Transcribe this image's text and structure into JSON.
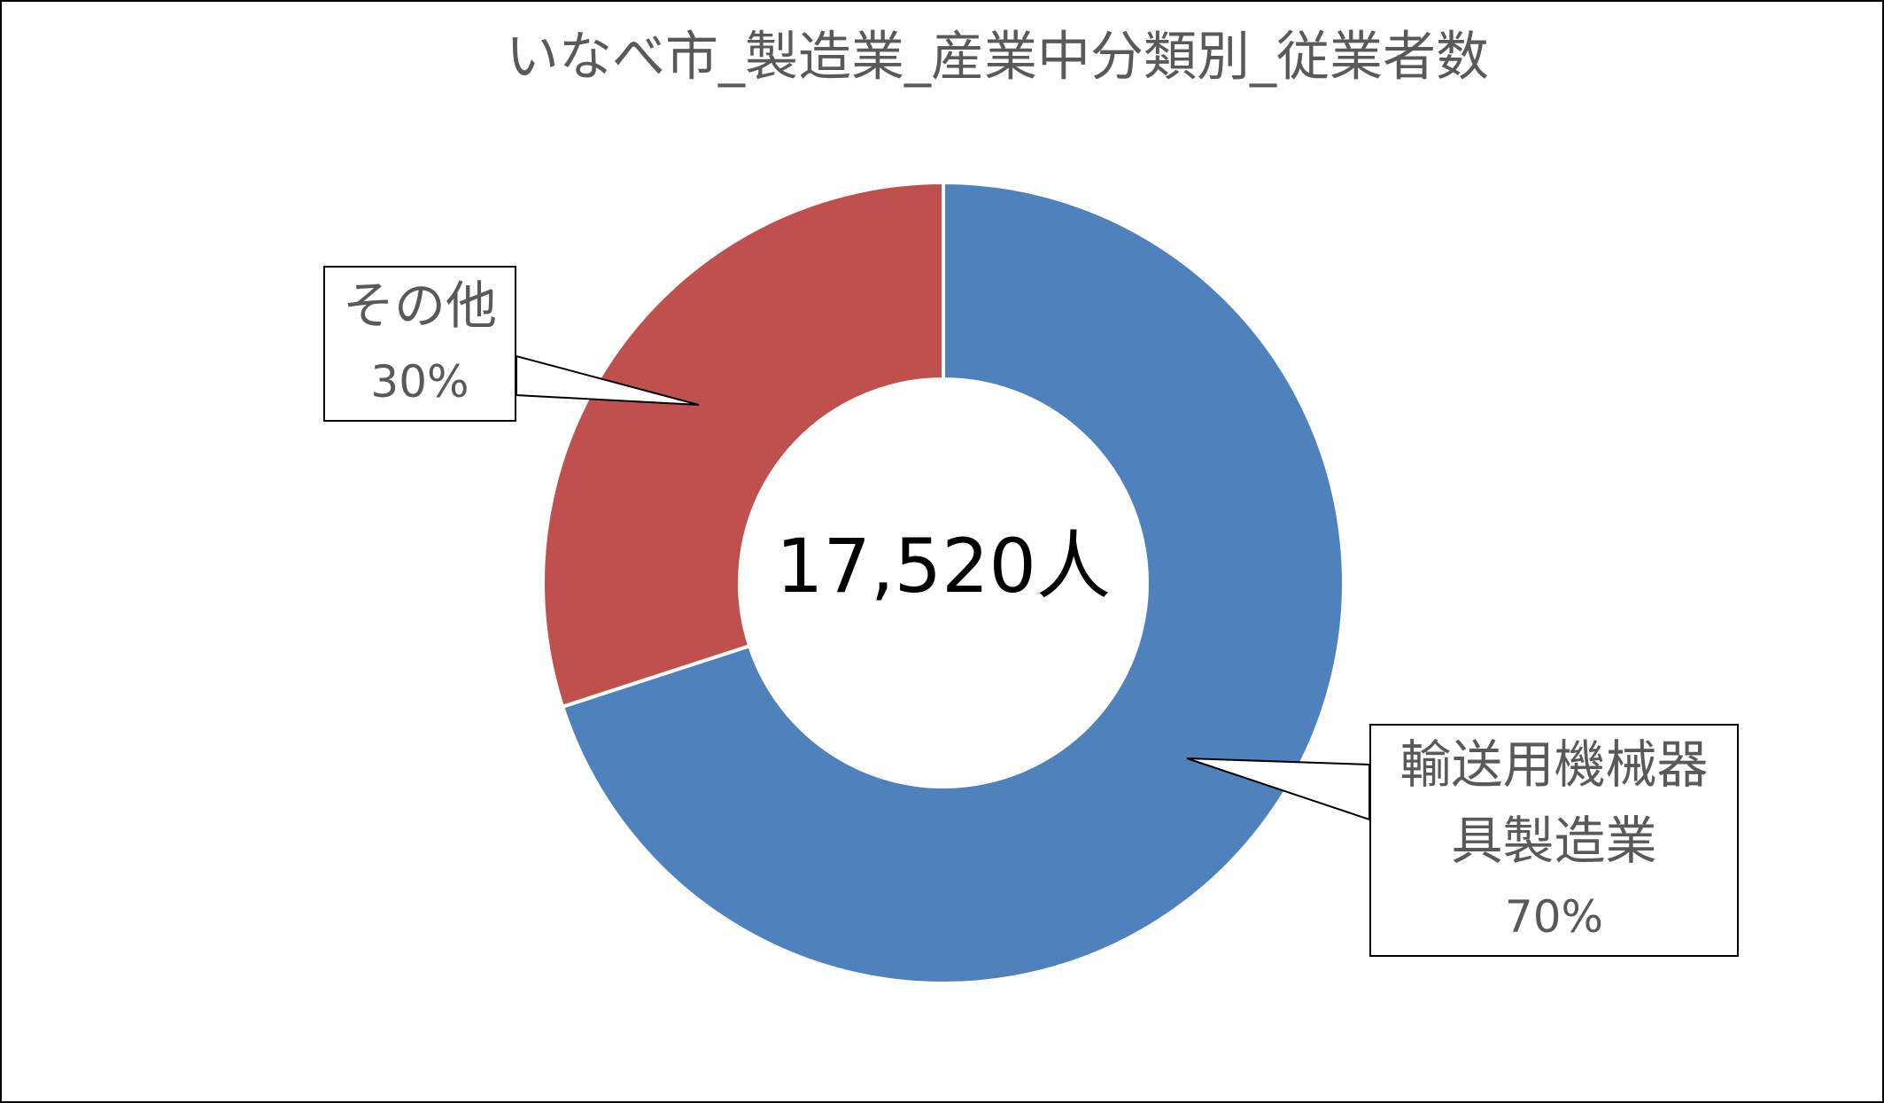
{
  "chart_data": {
    "type": "pie",
    "title": "いなべ市_製造業_産業中分類別_従業者数",
    "categories": [
      "輸送用機械器具製造業",
      "その他"
    ],
    "values": [
      70,
      30
    ],
    "value_labels": [
      "70%",
      "30%"
    ],
    "colors": [
      "#4f81bd",
      "#c0504d"
    ],
    "center_label": "17,520人"
  }
}
